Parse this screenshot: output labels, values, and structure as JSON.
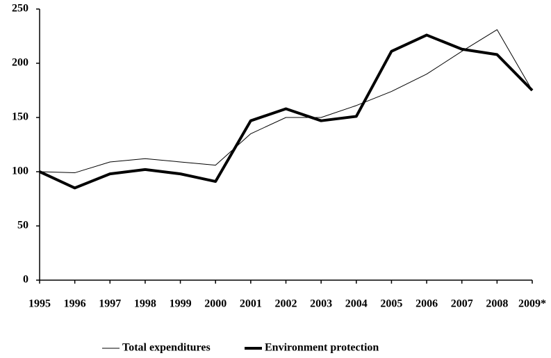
{
  "chart_data": {
    "type": "line",
    "categories": [
      "1995",
      "1996",
      "1997",
      "1998",
      "1999",
      "2000",
      "2001",
      "2002",
      "2003",
      "2004",
      "2005",
      "2006",
      "2007",
      "2008",
      "2009*"
    ],
    "series": [
      {
        "name": "Total expenditures",
        "color": "#000000",
        "width": 1,
        "values": [
          100,
          99,
          109,
          112,
          109,
          106,
          135,
          150,
          150,
          161,
          174,
          190,
          211,
          231,
          175
        ]
      },
      {
        "name": "Environment protection",
        "color": "#000000",
        "width": 4,
        "values": [
          100,
          85,
          98,
          102,
          98,
          91,
          147,
          158,
          147,
          151,
          211,
          226,
          213,
          208,
          175
        ]
      }
    ],
    "ylim": [
      0,
      250
    ],
    "yticks": [
      0,
      50,
      100,
      150,
      200,
      250
    ],
    "grid": false,
    "legend": "bottom"
  }
}
